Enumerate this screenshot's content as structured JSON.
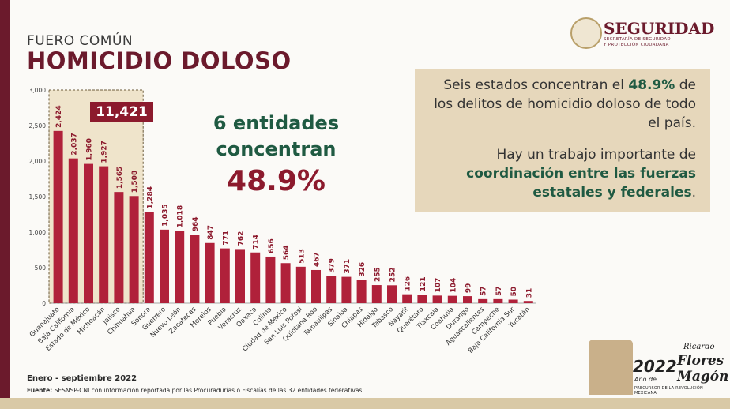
{
  "header": {
    "subtitle": "FUERO COMÚN",
    "title": "HOMICIDIO DOLOSO"
  },
  "logo": {
    "name": "SEGURIDAD",
    "sub_line1": "SECRETARÍA DE SEGURIDAD",
    "sub_line2": "Y PROTECCIÓN CIUDADANA"
  },
  "highlight": {
    "total": "11,421"
  },
  "mid": {
    "line1": "6 entidades",
    "line2": "concentran",
    "pct": "48.9%"
  },
  "info": {
    "p1_a": "Seis estados concentran el ",
    "p1_b": "48.9%",
    "p1_c": " de los delitos de homicidio doloso de todo el país.",
    "p2_a": "Hay un trabajo importante de ",
    "p2_b": "coordinación entre las fuerzas estatales y federales",
    "p2_c": "."
  },
  "footer": {
    "date": "Enero - septiembre 2022",
    "source_label": "Fuente:",
    "source_text": " SESNSP-CNI con información reportada por las Procuradurías o Fiscalías de las 32 entidades federativas."
  },
  "badge": {
    "year": "2022",
    "name_first": "Ricardo",
    "name_last1": "Flores",
    "name_last2": "Magón",
    "anio": "Año de",
    "tagline": "PRECURSOR DE LA REVOLUCIÓN MEXICANA"
  },
  "colors": {
    "bar": "#b0213a",
    "accent": "#8c1a2d",
    "green": "#1f5a42",
    "box": "#e6d7bb"
  },
  "chart_data": {
    "type": "bar",
    "categories": [
      "Guanajuato",
      "Baja California",
      "Estado de México",
      "Michoacán",
      "Jalisco",
      "Chihuahua",
      "Sonora",
      "Guerrero",
      "Nuevo León",
      "Zacatecas",
      "Morelos",
      "Puebla",
      "Veracruz",
      "Oaxaca",
      "Colima",
      "Ciudad de México",
      "San Luis Potosí",
      "Quintana Roo",
      "Tamaulipas",
      "Sinaloa",
      "Chiapas",
      "Hidalgo",
      "Tabasco",
      "Nayarit",
      "Querétaro",
      "Tlaxcala",
      "Coahuila",
      "Durango",
      "Aguascalientes",
      "Campeche",
      "Baja California Sur",
      "Yucatán"
    ],
    "values": [
      2424,
      2037,
      1960,
      1927,
      1565,
      1508,
      1284,
      1035,
      1018,
      964,
      847,
      771,
      762,
      714,
      656,
      564,
      513,
      467,
      379,
      371,
      326,
      255,
      252,
      126,
      121,
      107,
      104,
      99,
      57,
      57,
      50,
      31
    ],
    "value_labels": [
      "2,424",
      "2,037",
      "1,960",
      "1,927",
      "1,565",
      "1,508",
      "1,284",
      "1,035",
      "1,018",
      "964",
      "847",
      "771",
      "762",
      "714",
      "656",
      "564",
      "513",
      "467",
      "379",
      "371",
      "326",
      "255",
      "252",
      "126",
      "121",
      "107",
      "104",
      "99",
      "57",
      "57",
      "50",
      "31"
    ],
    "yticks": [
      "0",
      "500",
      "1,000",
      "1,500",
      "2,000",
      "2,500",
      "3,000"
    ],
    "ylim": [
      0,
      3000
    ],
    "highlighted_count": 6,
    "grid": false,
    "legend": "none"
  }
}
